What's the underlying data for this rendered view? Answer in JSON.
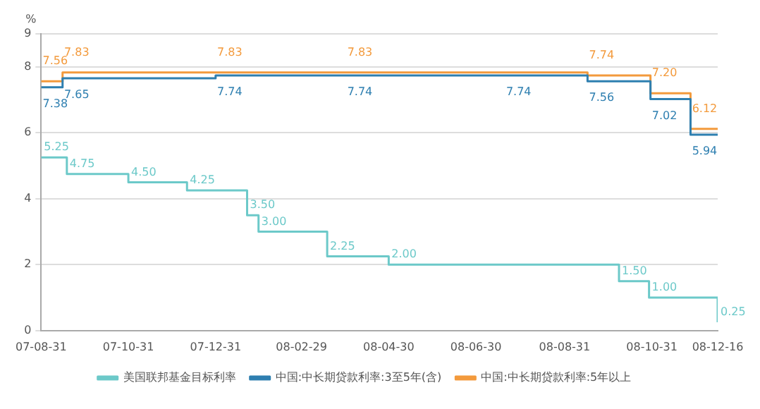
{
  "chart_data": {
    "type": "step",
    "ylabel": "%",
    "ylim": [
      0,
      9
    ],
    "yticks": [
      0,
      2,
      4,
      6,
      8,
      9
    ],
    "grid": "y",
    "legend": "bottom",
    "line_style": "solid",
    "marker": "none",
    "xlim": [
      "2007-08-31",
      "2008-12-16"
    ],
    "xticks": [
      {
        "value": "2007-08-31",
        "label": "07-08-31"
      },
      {
        "value": "2007-10-31",
        "label": "07-10-31"
      },
      {
        "value": "2007-12-31",
        "label": "07-12-31"
      },
      {
        "value": "2008-02-29",
        "label": "08-02-29"
      },
      {
        "value": "2008-04-30",
        "label": "08-04-30"
      },
      {
        "value": "2008-06-30",
        "label": "08-06-30"
      },
      {
        "value": "2008-08-31",
        "label": "08-08-31"
      },
      {
        "value": "2008-10-31",
        "label": "08-10-31"
      },
      {
        "value": "2008-12-16",
        "label": "08-12-16"
      }
    ],
    "series": [
      {
        "name": "美国联邦基金目标利率",
        "color": "#6cc9c9",
        "x": [
          "2007-08-31",
          "2007-09-18",
          "2007-10-31",
          "2007-12-11",
          "2008-01-22",
          "2008-01-30",
          "2008-03-18",
          "2008-04-30",
          "2008-10-08",
          "2008-10-29",
          "2008-12-16"
        ],
        "values": [
          5.25,
          4.75,
          4.5,
          4.25,
          3.5,
          3.0,
          2.25,
          2.0,
          1.5,
          1.0,
          0.25
        ],
        "value_labels": [
          "5.25",
          "4.75",
          "4.50",
          "4.25",
          "3.50",
          "3.00",
          "2.25",
          "2.00",
          "1.50",
          "1.00",
          "0.25"
        ]
      },
      {
        "name": "中国:中长期贷款利率:3至5年(含)",
        "color": "#2e7fb0",
        "x": [
          "2007-08-31",
          "2007-09-15",
          "2007-12-31",
          "2008-03-31",
          "2008-07-20",
          "2008-09-16",
          "2008-10-30",
          "2008-11-27",
          "2008-12-16"
        ],
        "values": [
          7.38,
          7.65,
          7.74,
          7.74,
          7.74,
          7.56,
          7.02,
          5.94,
          5.94
        ],
        "value_labels": [
          "7.38",
          "7.65",
          "7.74",
          "7.74",
          "7.74",
          "7.56",
          "7.02",
          "5.94",
          null
        ]
      },
      {
        "name": "中国:中长期贷款利率:5年以上",
        "color": "#f39a3c",
        "x": [
          "2007-08-31",
          "2007-09-15",
          "2007-12-31",
          "2008-03-31",
          "2008-07-20",
          "2008-09-16",
          "2008-10-30",
          "2008-11-27",
          "2008-12-16"
        ],
        "values": [
          7.56,
          7.83,
          7.83,
          7.83,
          7.83,
          7.74,
          7.2,
          6.12,
          6.12
        ],
        "value_labels": [
          "7.56",
          "7.83",
          "7.83",
          "7.83",
          null,
          "7.74",
          "7.20",
          "6.12",
          null
        ]
      }
    ]
  }
}
